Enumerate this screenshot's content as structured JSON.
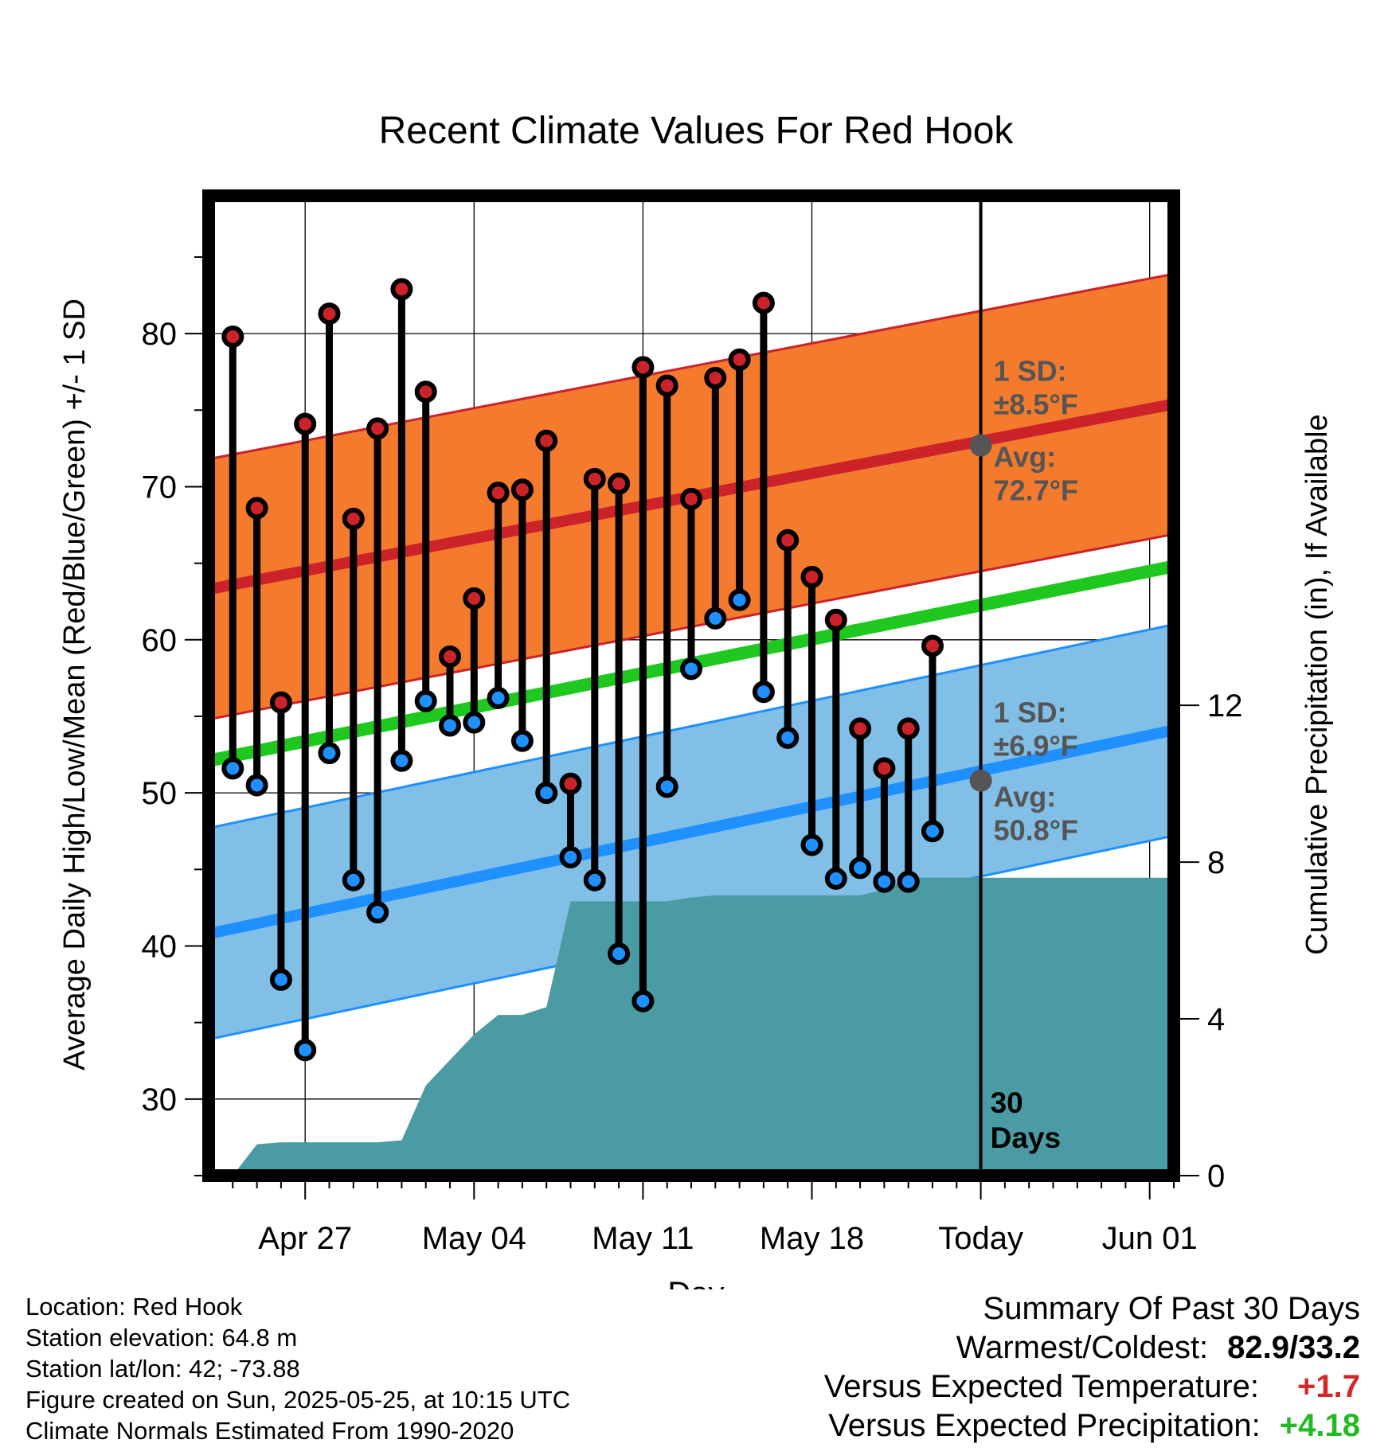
{
  "chart_data": {
    "type": "line",
    "title": "Recent Climate Values For Red Hook",
    "xlabel": "Day",
    "ylabel": "Average Daily High/Low/Mean (Red/Blue/Green) +/- 1 SD",
    "y2label": "Cumulative Precipitation (in), If Available",
    "x_ticks": [
      "Apr 27",
      "May 04",
      "May 11",
      "May 18",
      "Today",
      "Jun 01"
    ],
    "x_range": [
      "2025-04-23",
      "2025-06-02"
    ],
    "ylim": [
      25,
      89
    ],
    "y_ticks": [
      30,
      40,
      50,
      60,
      70,
      80
    ],
    "y2lim": [
      0,
      25
    ],
    "y2_ticks": [
      0,
      4,
      8,
      12
    ],
    "grid": true,
    "today": "2025-05-25",
    "today_marker_label": "30\nDays",
    "dates": [
      "2025-04-24",
      "2025-04-25",
      "2025-04-26",
      "2025-04-27",
      "2025-04-28",
      "2025-04-29",
      "2025-04-30",
      "2025-05-01",
      "2025-05-02",
      "2025-05-03",
      "2025-05-04",
      "2025-05-05",
      "2025-05-06",
      "2025-05-07",
      "2025-05-08",
      "2025-05-09",
      "2025-05-10",
      "2025-05-11",
      "2025-05-12",
      "2025-05-13",
      "2025-05-14",
      "2025-05-15",
      "2025-05-16",
      "2025-05-17",
      "2025-05-18",
      "2025-05-19",
      "2025-05-20",
      "2025-05-21",
      "2025-05-22",
      "2025-05-23",
      "2025-05-24"
    ],
    "series": [
      {
        "name": "Daily High",
        "color": "#cc2229",
        "values": [
          79.8,
          68.6,
          55.9,
          74.1,
          81.3,
          67.9,
          73.8,
          82.9,
          76.2,
          58.9,
          62.7,
          69.6,
          69.8,
          73.0,
          50.6,
          70.5,
          70.2,
          77.8,
          76.6,
          69.2,
          77.1,
          78.3,
          82.0,
          66.5,
          64.1,
          61.3,
          54.2,
          51.6,
          54.2,
          59.6,
          null
        ]
      },
      {
        "name": "Daily Low",
        "color": "#1e90ff",
        "values": [
          51.6,
          50.5,
          37.8,
          33.2,
          52.6,
          44.3,
          42.2,
          52.1,
          56.0,
          54.4,
          54.6,
          56.2,
          53.4,
          50.0,
          45.8,
          44.3,
          39.5,
          36.4,
          50.4,
          58.1,
          61.4,
          62.6,
          56.6,
          53.6,
          46.6,
          44.4,
          45.1,
          44.2,
          44.2,
          47.5,
          null
        ]
      }
    ],
    "normals": {
      "high_avg": {
        "start": 63.3,
        "end": 75.4
      },
      "high_sd": 8.5,
      "low_avg": {
        "start": 40.8,
        "end": 54.1
      },
      "low_sd": 6.9,
      "mean_avg": {
        "start": 52.1,
        "end": 64.8
      }
    },
    "precipitation": {
      "dates": [
        "2025-04-24",
        "2025-04-25",
        "2025-04-26",
        "2025-04-30",
        "2025-05-01",
        "2025-05-02",
        "2025-05-03",
        "2025-05-04",
        "2025-05-05",
        "2025-05-06",
        "2025-05-07",
        "2025-05-08",
        "2025-05-09",
        "2025-05-10",
        "2025-05-12",
        "2025-05-13",
        "2025-05-14",
        "2025-05-17",
        "2025-05-20",
        "2025-05-21",
        "2025-05-22",
        "2025-05-24",
        "2025-06-02"
      ],
      "cumulative_in": [
        0.0,
        0.8,
        0.85,
        0.85,
        0.9,
        2.3,
        2.95,
        3.6,
        4.1,
        4.1,
        4.3,
        7.0,
        7.0,
        7.0,
        7.0,
        7.1,
        7.15,
        7.15,
        7.15,
        7.3,
        7.6,
        7.6,
        7.6
      ]
    },
    "annotations": {
      "high_sd": "1 SD:\n±8.5°F",
      "high_avg": "Avg:\n72.7°F",
      "low_sd": "1 SD:\n±6.9°F",
      "low_avg": "Avg:\n50.8°F",
      "high_today_value": 72.7,
      "low_today_value": 50.8
    },
    "colors": {
      "high_band": "#f47a2e",
      "high_line": "#cc2229",
      "low_band": "#82bfe6",
      "low_line": "#1e90ff",
      "mean_line": "#1ec81e",
      "precip_fill": "#4a9ba4",
      "annotation_text": "#555555"
    }
  },
  "footer": {
    "location": "Location: Red Hook",
    "elevation": "Station elevation: 64.8 m",
    "latlon": "Station lat/lon: 42; -73.88",
    "created": "Figure created on Sun, 2025-05-25, at 10:15 UTC",
    "normals": "Climate Normals Estimated From 1990-2020"
  },
  "summary": {
    "heading": "Summary Of Past 30 Days",
    "warmest_coldest_label": "Warmest/Coldest:",
    "warmest_coldest_value": "82.9/33.2",
    "temp_label": "Versus Expected Temperature:",
    "temp_value": "+1.7",
    "temp_color": "#d62728",
    "precip_label": "Versus Expected Precipitation:",
    "precip_value": "+4.18",
    "precip_color": "#22bb22"
  }
}
